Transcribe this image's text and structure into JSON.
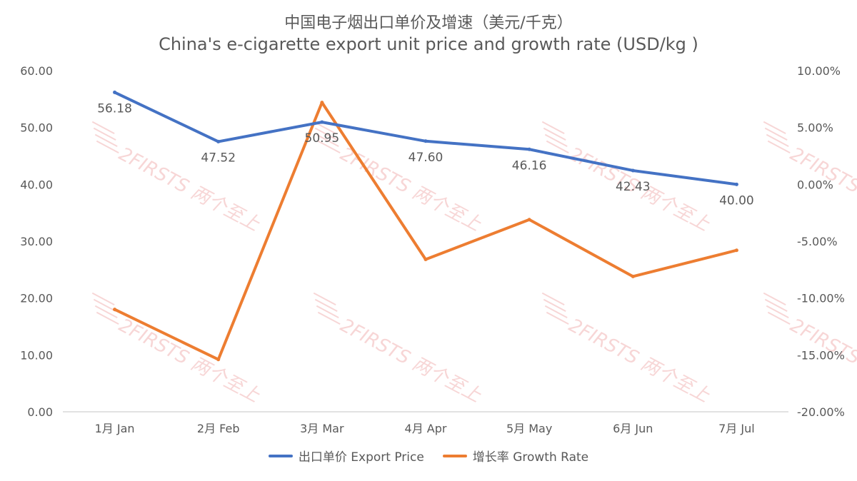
{
  "title_cn": "中国电子烟出口单价及增速（美元/千克）",
  "title_en": "China's e-cigarette export unit price and growth rate (USD/kg )",
  "watermark": "2FIRSTS 两个至上",
  "colors": {
    "price": "#4472C4",
    "growth": "#ED7D31",
    "axis": "#D9D9D9",
    "text": "#595959",
    "watermark": "#F2B6B6"
  },
  "chart_data": {
    "type": "line",
    "title": "China's e-cigarette export unit price and growth rate (USD/kg )",
    "categories": [
      "1月 Jan",
      "2月 Feb",
      "3月 Mar",
      "4月 Apr",
      "5月 May",
      "6月 Jun",
      "7月 Jul"
    ],
    "series": [
      {
        "name": "出口单价 Export Price",
        "axis": "left",
        "values": [
          56.18,
          47.52,
          50.95,
          47.6,
          46.16,
          42.43,
          40.0
        ],
        "labels": [
          "56.18",
          "47.52",
          "50.95",
          "47.60",
          "46.16",
          "42.43",
          "40.00"
        ]
      },
      {
        "name": "增长率 Growth Rate",
        "axis": "right",
        "values": [
          -11.0,
          -15.4,
          7.2,
          -6.6,
          -3.1,
          -8.1,
          -5.8
        ]
      }
    ],
    "y_left": {
      "min": 0,
      "max": 60,
      "ticks": [
        "0.00",
        "10.00",
        "20.00",
        "30.00",
        "40.00",
        "50.00",
        "60.00"
      ]
    },
    "y_right": {
      "min": -20,
      "max": 10,
      "ticks": [
        "-20.00%",
        "-15.00%",
        "-10.00%",
        "-5.00%",
        "0.00%",
        "5.00%",
        "10.00%"
      ]
    },
    "grid": false,
    "legend": "bottom"
  }
}
